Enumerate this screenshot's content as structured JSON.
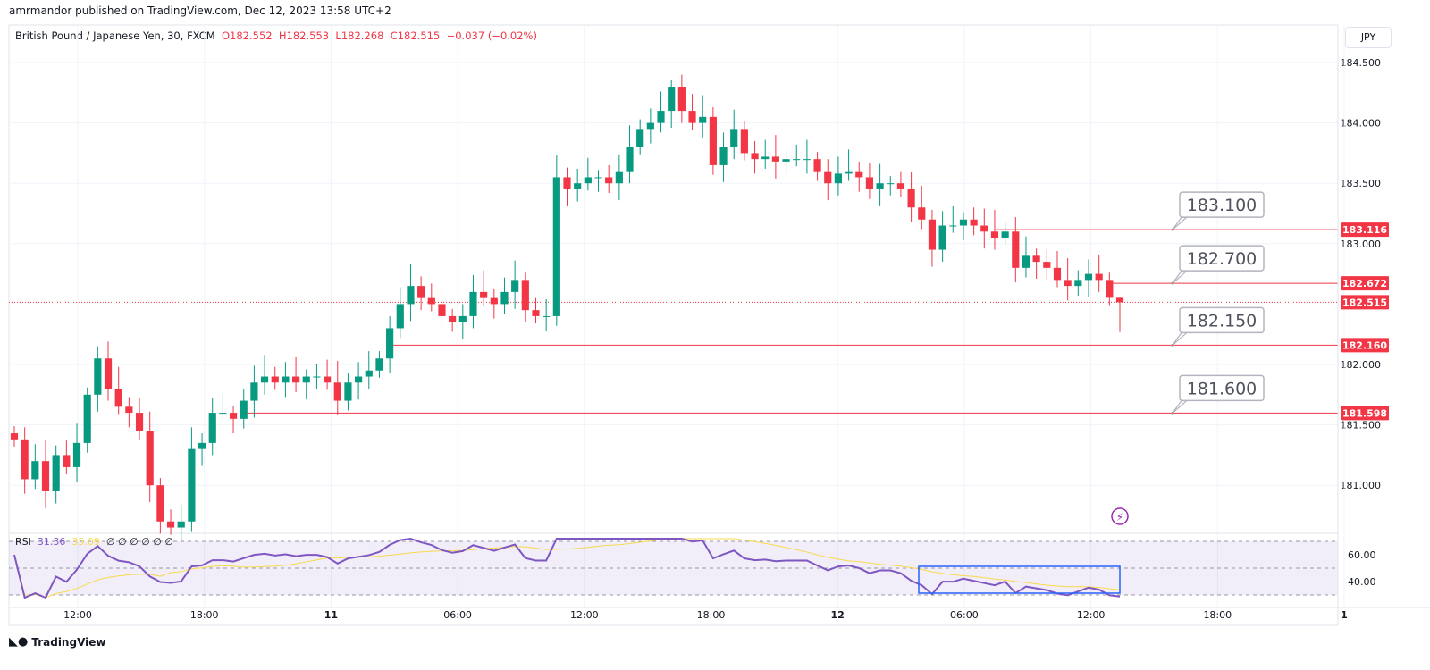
{
  "published": "amrmandor published on TradingView.com, Dec 12, 2023 13:58 UTC+2",
  "symbol": {
    "name": "British Pound / Japanese Yen, 30, FXCM",
    "open": "O182.552",
    "high": "H182.553",
    "low": "L182.268",
    "close": "C182.515",
    "change": "−0.037 (−0.02%)"
  },
  "currency": "JPY",
  "rsi": {
    "label": "RSI",
    "value": "31.36",
    "ma": "35.09",
    "extras": [
      "∅",
      "∅",
      "∅",
      "∅",
      "∅",
      "∅"
    ]
  },
  "brand": "TradingView",
  "colors": {
    "up": "#089981",
    "down": "#f23645",
    "rsi": "#7e57c2",
    "rsi_ma": "#f7d94c",
    "box": "#2962ff"
  },
  "chart_data": {
    "type": "candlestick",
    "price_ticks": [
      "184.500",
      "184.000",
      "183.500",
      "183.000",
      "182.000",
      "181.500",
      "181.000"
    ],
    "price_tick_values": [
      184.5,
      184.0,
      183.5,
      183.0,
      182.0,
      181.5,
      181.0
    ],
    "time_ticks": [
      "12:00",
      "18:00",
      "11",
      "06:00",
      "12:00",
      "18:00",
      "12",
      "06:00",
      "12:00",
      "18:00",
      "1"
    ],
    "rsi_ticks": [
      "60.00",
      "40.00"
    ],
    "closes": [
      181.38,
      181.05,
      181.2,
      180.95,
      181.25,
      181.15,
      181.35,
      181.75,
      182.05,
      181.8,
      181.65,
      181.6,
      181.45,
      181.0,
      180.7,
      180.65,
      180.7,
      181.3,
      181.35,
      181.6,
      181.6,
      181.55,
      181.7,
      181.85,
      181.9,
      181.85,
      181.9,
      181.85,
      181.9,
      181.9,
      181.85,
      181.7,
      181.85,
      181.9,
      181.95,
      182.05,
      182.3,
      182.5,
      182.65,
      182.55,
      182.5,
      182.4,
      182.35,
      182.4,
      182.6,
      182.55,
      182.5,
      182.6,
      182.7,
      182.45,
      182.4,
      182.4,
      183.55,
      183.45,
      183.5,
      183.55,
      183.55,
      183.5,
      183.6,
      183.8,
      183.95,
      184.0,
      184.1,
      184.3,
      184.1,
      184.0,
      184.05,
      183.65,
      183.8,
      183.95,
      183.75,
      183.7,
      183.72,
      183.68,
      183.7,
      183.7,
      183.7,
      183.6,
      183.5,
      183.58,
      183.6,
      183.55,
      183.45,
      183.5,
      183.5,
      183.45,
      183.3,
      183.2,
      182.95,
      183.15,
      183.15,
      183.2,
      183.15,
      183.1,
      183.05,
      183.1,
      182.8,
      182.9,
      182.85,
      182.8,
      182.7,
      182.65,
      182.7,
      182.75,
      182.7,
      182.552,
      182.515
    ],
    "last_candle": {
      "open": 182.552,
      "high": 182.553,
      "low": 182.268,
      "close": 182.515
    },
    "levels": [
      {
        "price": 183.116,
        "label": "183.116",
        "note": "183.100",
        "from_index": 94
      },
      {
        "price": 182.672,
        "label": "182.672",
        "note": "182.700",
        "from_index": 105
      },
      {
        "price": 182.16,
        "label": "182.160",
        "note": "182.150",
        "from_index": 36
      },
      {
        "price": 181.598,
        "label": "181.598",
        "note": "181.600",
        "from_index": 22
      }
    ],
    "current_price": {
      "price": 182.515,
      "label": "182.515"
    }
  }
}
